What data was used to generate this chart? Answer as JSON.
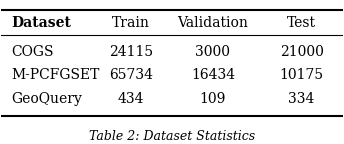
{
  "columns": [
    "Dataset",
    "Train",
    "Validation",
    "Test"
  ],
  "rows": [
    [
      "COGS",
      "24115",
      "3000",
      "21000"
    ],
    [
      "M-PCFGSET",
      "65734",
      "16434",
      "10175"
    ],
    [
      "GeoQuery",
      "434",
      "109",
      "334"
    ]
  ],
  "caption": "Table 2: Dataset Statistics",
  "col_aligns": [
    "left",
    "center",
    "center",
    "center"
  ],
  "header_bold": [
    true,
    false,
    false,
    false
  ],
  "background_color": "#ffffff",
  "text_color": "#000000",
  "font_size": 10,
  "caption_font_size": 9
}
